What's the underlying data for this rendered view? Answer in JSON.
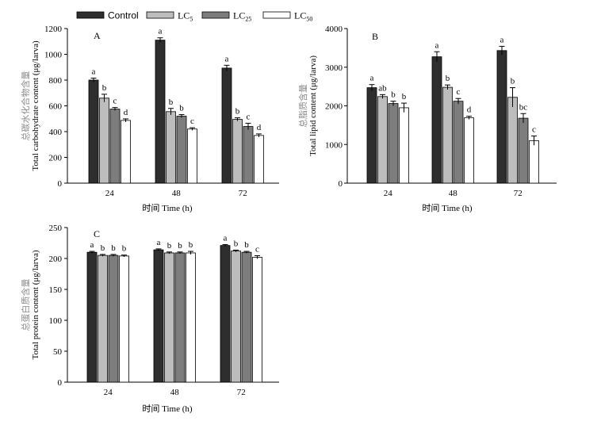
{
  "legend": [
    {
      "label": "Control",
      "sub": "",
      "color": "#2e2e2e",
      "font": "sans"
    },
    {
      "label": "LC",
      "sub": "5",
      "color": "#bdbdbd",
      "font": "serif"
    },
    {
      "label": "LC",
      "sub": "25",
      "color": "#7d7d7d",
      "font": "serif"
    },
    {
      "label": "LC",
      "sub": "50",
      "color": "#ffffff",
      "font": "serif"
    }
  ],
  "chart_data": [
    {
      "type": "bar",
      "panel": "A",
      "categories": [
        "24",
        "48",
        "72"
      ],
      "xlabel_cn": "时间",
      "xlabel": "Time (h)",
      "ylabel_cn": "总碳水化合物含量",
      "ylabel": "Total carbohydrate content (μg/larva)",
      "ylim": [
        0,
        1200
      ],
      "yticks": [
        0,
        200,
        400,
        600,
        800,
        1000,
        1200
      ],
      "series": [
        {
          "name": "Control",
          "values": [
            800,
            1110,
            893
          ],
          "errors": [
            15,
            18,
            22
          ],
          "labels": [
            "a",
            "a",
            "a"
          ]
        },
        {
          "name": "LC5",
          "values": [
            660,
            555,
            495
          ],
          "errors": [
            30,
            25,
            12
          ],
          "labels": [
            "b",
            "b",
            "b"
          ]
        },
        {
          "name": "LC25",
          "values": [
            575,
            520,
            440
          ],
          "errors": [
            12,
            12,
            25
          ],
          "labels": [
            "c",
            "b",
            "c"
          ]
        },
        {
          "name": "LC50",
          "values": [
            487,
            420,
            370
          ],
          "errors": [
            12,
            10,
            12
          ],
          "labels": [
            "d",
            "c",
            "d"
          ]
        }
      ]
    },
    {
      "type": "bar",
      "panel": "B",
      "categories": [
        "24",
        "48",
        "72"
      ],
      "xlabel_cn": "时间",
      "xlabel": "Time (h)",
      "ylabel_cn": "总脂质含量",
      "ylabel": "Total lipid content (μg/larva)",
      "ylim": [
        0,
        4000
      ],
      "yticks": [
        0,
        1000,
        2000,
        3000,
        4000
      ],
      "series": [
        {
          "name": "Control",
          "values": [
            2470,
            3270,
            3430
          ],
          "errors": [
            80,
            130,
            110
          ],
          "labels": [
            "a",
            "a",
            "a"
          ]
        },
        {
          "name": "LC5",
          "values": [
            2240,
            2480,
            2220
          ],
          "errors": [
            50,
            60,
            250
          ],
          "labels": [
            "ab",
            "b",
            "b"
          ]
        },
        {
          "name": "LC25",
          "values": [
            2060,
            2120,
            1680
          ],
          "errors": [
            60,
            70,
            120
          ],
          "labels": [
            "b",
            "c",
            "bc"
          ]
        },
        {
          "name": "LC50",
          "values": [
            1950,
            1690,
            1100
          ],
          "errors": [
            120,
            40,
            120
          ],
          "labels": [
            "b",
            "d",
            "c"
          ]
        }
      ]
    },
    {
      "type": "bar",
      "panel": "C",
      "categories": [
        "24",
        "48",
        "72"
      ],
      "xlabel_cn": "时间",
      "xlabel": "Time (h)",
      "ylabel_cn": "总蛋白质含量",
      "ylabel": "Total protein content (μg/larva)",
      "ylim": [
        0,
        250
      ],
      "yticks": [
        0,
        50,
        100,
        150,
        200,
        250
      ],
      "series": [
        {
          "name": "Control",
          "values": [
            210,
            214,
            221
          ],
          "errors": [
            1.5,
            1.5,
            1.5
          ],
          "labels": [
            "a",
            "a",
            "a"
          ]
        },
        {
          "name": "LC5",
          "values": [
            205,
            209,
            212
          ],
          "errors": [
            1.5,
            1.5,
            1.5
          ],
          "labels": [
            "b",
            "b",
            "b"
          ]
        },
        {
          "name": "LC25",
          "values": [
            205,
            209,
            210
          ],
          "errors": [
            1.5,
            1.5,
            1.5
          ],
          "labels": [
            "b",
            "b",
            "b"
          ]
        },
        {
          "name": "LC50",
          "values": [
            204,
            209,
            202
          ],
          "errors": [
            1.5,
            2.5,
            2.5
          ],
          "labels": [
            "b",
            "b",
            "c"
          ]
        }
      ]
    }
  ]
}
